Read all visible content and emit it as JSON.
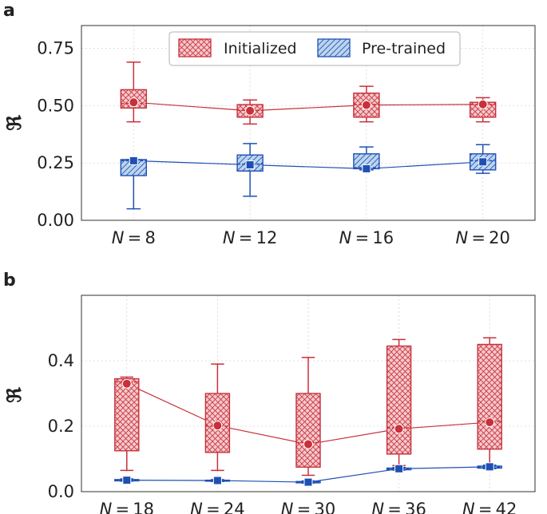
{
  "colors": {
    "initialized": "#c8303a",
    "pretrained": "#1e50b4",
    "init_fill": "#f5c9cc",
    "pre_fill": "#bcd4ee"
  },
  "legend": {
    "labels": [
      "Initialized",
      "Pre-trained"
    ]
  },
  "chart_data": [
    {
      "panel": "a",
      "type": "box",
      "n_prefix": "N",
      "categories": [
        "8",
        "12",
        "16",
        "20"
      ],
      "ylabel": "ℜ",
      "ylim": [
        0,
        0.85
      ],
      "yticks": [
        "0.00",
        "0.25",
        "0.50",
        "0.75"
      ],
      "ytick_values": [
        0,
        0.25,
        0.5,
        0.75
      ],
      "grid": true,
      "legend_position": "top-center",
      "series": [
        {
          "name": "Initialized",
          "color": "initialized",
          "boxes": [
            {
              "whislo": 0.43,
              "q1": 0.49,
              "med": 0.51,
              "q3": 0.57,
              "whishi": 0.69,
              "mean": 0.515
            },
            {
              "whislo": 0.42,
              "q1": 0.45,
              "med": 0.48,
              "q3": 0.505,
              "whishi": 0.525,
              "mean": 0.478
            },
            {
              "whislo": 0.43,
              "q1": 0.45,
              "med": 0.505,
              "q3": 0.555,
              "whishi": 0.585,
              "mean": 0.503
            },
            {
              "whislo": 0.43,
              "q1": 0.45,
              "med": 0.505,
              "q3": 0.515,
              "whishi": 0.535,
              "mean": 0.506
            }
          ]
        },
        {
          "name": "Pre-trained",
          "color": "pretrained",
          "boxes": [
            {
              "whislo": 0.05,
              "q1": 0.195,
              "med": 0.26,
              "q3": 0.265,
              "whishi": 0.265,
              "mean": 0.26
            },
            {
              "whislo": 0.105,
              "q1": 0.215,
              "med": 0.245,
              "q3": 0.285,
              "whishi": 0.335,
              "mean": 0.242
            },
            {
              "whislo": 0.22,
              "q1": 0.225,
              "med": 0.23,
              "q3": 0.29,
              "whishi": 0.32,
              "mean": 0.225
            },
            {
              "whislo": 0.205,
              "q1": 0.22,
              "med": 0.26,
              "q3": 0.29,
              "whishi": 0.33,
              "mean": 0.255
            }
          ]
        }
      ]
    },
    {
      "panel": "b",
      "type": "box",
      "n_prefix": "N",
      "categories": [
        "18",
        "24",
        "30",
        "36",
        "42"
      ],
      "ylabel": "ℜ",
      "ylim": [
        0,
        0.6
      ],
      "yticks": [
        "0.0",
        "0.2",
        "0.4"
      ],
      "ytick_values": [
        0,
        0.2,
        0.4
      ],
      "grid": true,
      "series": [
        {
          "name": "Initialized",
          "color": "initialized",
          "boxes": [
            {
              "whislo": 0.065,
              "q1": 0.125,
              "med": 0.335,
              "q3": 0.345,
              "whishi": 0.35,
              "mean": 0.33
            },
            {
              "whislo": 0.065,
              "q1": 0.12,
              "med": 0.2,
              "q3": 0.3,
              "whishi": 0.39,
              "mean": 0.202
            },
            {
              "whislo": 0.05,
              "q1": 0.075,
              "med": 0.15,
              "q3": 0.3,
              "whishi": 0.41,
              "mean": 0.145
            },
            {
              "whislo": 0.08,
              "q1": 0.115,
              "med": 0.195,
              "q3": 0.445,
              "whishi": 0.465,
              "mean": 0.192
            },
            {
              "whislo": 0.075,
              "q1": 0.13,
              "med": 0.215,
              "q3": 0.45,
              "whishi": 0.47,
              "mean": 0.212
            }
          ]
        },
        {
          "name": "Pre-trained",
          "color": "pretrained",
          "boxes": [
            {
              "whislo": 0.032,
              "q1": 0.033,
              "med": 0.035,
              "q3": 0.037,
              "whishi": 0.039,
              "mean": 0.035
            },
            {
              "whislo": 0.031,
              "q1": 0.032,
              "med": 0.034,
              "q3": 0.035,
              "whishi": 0.037,
              "mean": 0.034
            },
            {
              "whislo": 0.026,
              "q1": 0.027,
              "med": 0.029,
              "q3": 0.031,
              "whishi": 0.033,
              "mean": 0.029
            },
            {
              "whislo": 0.066,
              "q1": 0.067,
              "med": 0.07,
              "q3": 0.072,
              "whishi": 0.074,
              "mean": 0.07
            },
            {
              "whislo": 0.07,
              "q1": 0.072,
              "med": 0.075,
              "q3": 0.078,
              "whishi": 0.081,
              "mean": 0.076
            }
          ]
        }
      ]
    }
  ]
}
